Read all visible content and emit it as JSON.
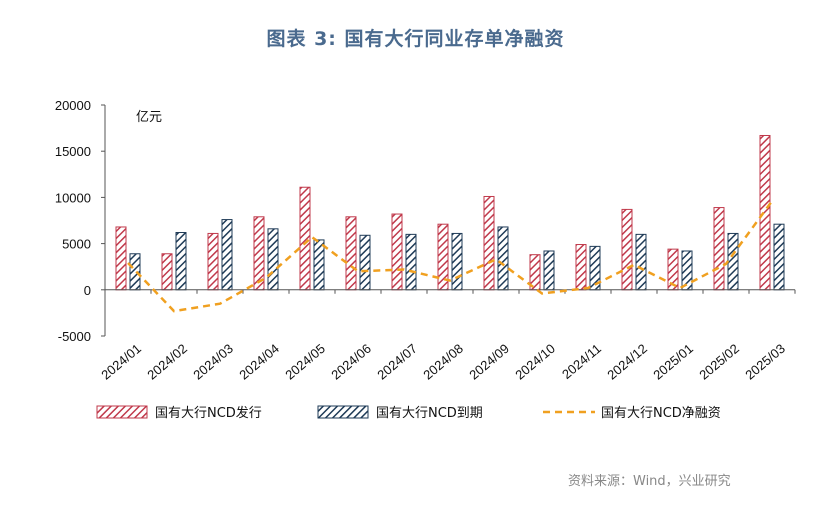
{
  "title": "图表 3:   国有大行同业存单净融资",
  "source": "资料来源：Wind，兴业研究",
  "chart_data": {
    "type": "bar",
    "unit": "亿元",
    "ylim": [
      -5000,
      20000
    ],
    "yticks": [
      -5000,
      0,
      5000,
      10000,
      15000,
      20000
    ],
    "categories": [
      "2024/01",
      "2024/02",
      "2024/03",
      "2024/04",
      "2024/05",
      "2024/06",
      "2024/07",
      "2024/08",
      "2024/09",
      "2024/10",
      "2024/11",
      "2024/12",
      "2025/01",
      "2025/02",
      "2025/03"
    ],
    "series": [
      {
        "name": "国有大行NCD发行",
        "kind": "bar",
        "color": "#c0394b",
        "pattern": "hatch-red",
        "values": [
          6800,
          3900,
          6100,
          7900,
          11100,
          7900,
          8200,
          7100,
          10100,
          3800,
          4900,
          8700,
          4400,
          8900,
          16700
        ]
      },
      {
        "name": "国有大行NCD到期",
        "kind": "bar",
        "color": "#1f3b57",
        "pattern": "hatch-navy",
        "values": [
          3900,
          6200,
          7600,
          6600,
          5400,
          5900,
          6000,
          6100,
          6800,
          4200,
          4700,
          6000,
          4200,
          6100,
          7100
        ]
      },
      {
        "name": "国有大行NCD净融资",
        "kind": "line",
        "color": "#f0a020",
        "dash": "7,5",
        "values": [
          2900,
          -2300,
          -1500,
          1300,
          5700,
          2000,
          2200,
          1000,
          3300,
          -400,
          200,
          2700,
          200,
          2800,
          9600
        ]
      }
    ],
    "grid": false,
    "legend": "bottom"
  }
}
